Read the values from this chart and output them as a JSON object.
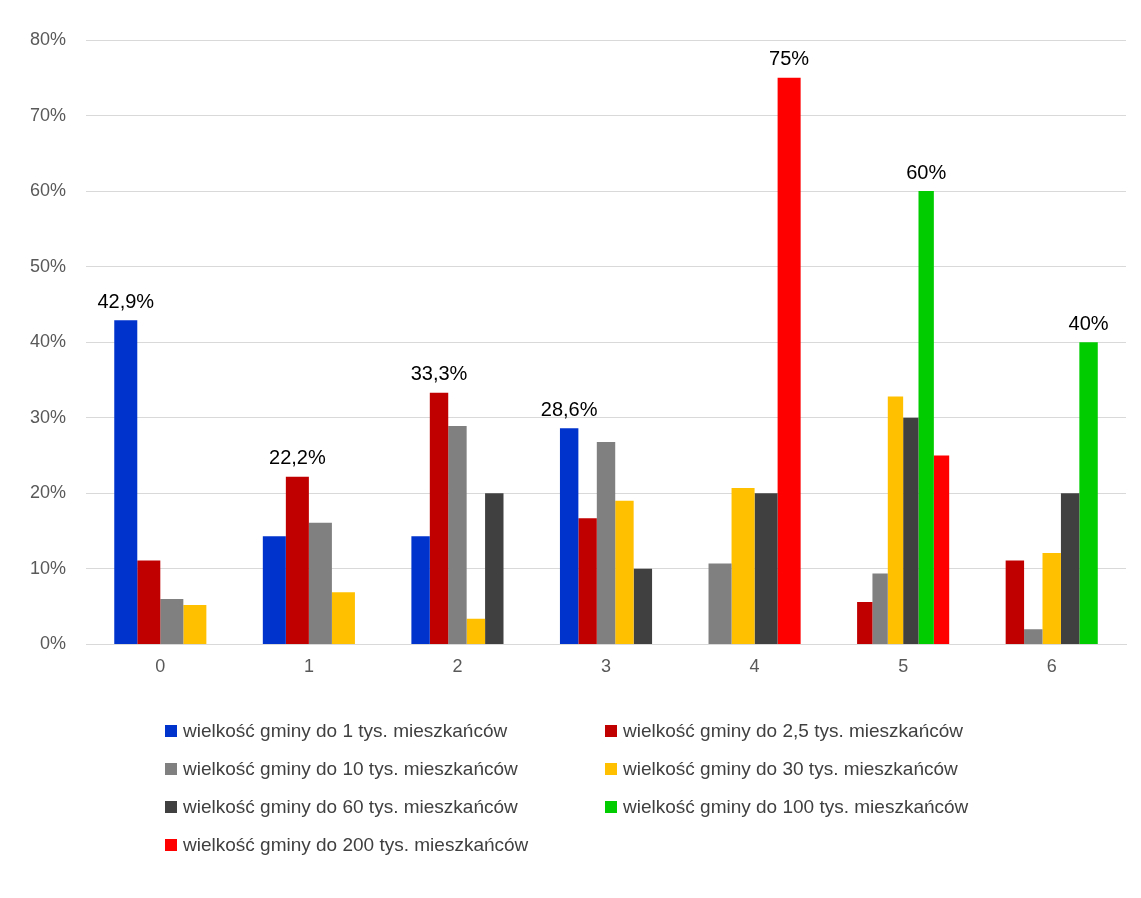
{
  "chart_data": {
    "type": "bar",
    "categories": [
      "0",
      "1",
      "2",
      "3",
      "4",
      "5",
      "6"
    ],
    "series": [
      {
        "name": "wielkość gminy do 1 tys. mieszkańców",
        "color": "#0033cc",
        "values": [
          42.9,
          14.3,
          14.3,
          28.6,
          null,
          null,
          null
        ],
        "value_labels": [
          "42,9%",
          null,
          null,
          "28,6%",
          null,
          null,
          null
        ]
      },
      {
        "name": "wielkość gminy do 2,5 tys. mieszkańców",
        "color": "#c00000",
        "values": [
          11.1,
          22.2,
          33.3,
          16.7,
          null,
          5.6,
          11.1
        ],
        "value_labels": [
          null,
          "22,2%",
          "33,3%",
          null,
          null,
          null,
          null
        ]
      },
      {
        "name": "wielkość gminy do 10 tys. mieszkańców",
        "color": "#808080",
        "values": [
          6.0,
          16.1,
          28.9,
          26.8,
          10.7,
          9.4,
          2.0
        ]
      },
      {
        "name": "wielkość gminy do 30 tys. mieszkańców",
        "color": "#ffc000",
        "values": [
          5.2,
          6.9,
          3.4,
          19.0,
          20.7,
          32.8,
          12.1
        ]
      },
      {
        "name": "wielkość gminy do 60 tys. mieszkańców",
        "color": "#404040",
        "values": [
          null,
          null,
          20,
          10,
          20,
          30,
          20
        ]
      },
      {
        "name": "wielkość gminy do 100 tys. mieszkańców",
        "color": "#00cc00",
        "values": [
          null,
          null,
          null,
          null,
          null,
          60,
          40
        ],
        "value_labels": [
          null,
          null,
          null,
          null,
          null,
          "60%",
          "40%"
        ]
      },
      {
        "name": "wielkość gminy do 200 tys. mieszkańców",
        "color": "#ff0000",
        "values": [
          null,
          null,
          null,
          null,
          75,
          25,
          null
        ],
        "value_labels": [
          null,
          null,
          null,
          null,
          "75%",
          null,
          null
        ]
      }
    ],
    "ylim": [
      0,
      80
    ],
    "yticks": [
      {
        "value": 0,
        "label": "0%"
      },
      {
        "value": 10,
        "label": "10%"
      },
      {
        "value": 20,
        "label": "20%"
      },
      {
        "value": 30,
        "label": "30%"
      },
      {
        "value": 40,
        "label": "40%"
      },
      {
        "value": 50,
        "label": "50%"
      },
      {
        "value": 60,
        "label": "60%"
      },
      {
        "value": 70,
        "label": "70%"
      },
      {
        "value": 80,
        "label": "80%"
      }
    ],
    "grid": "y",
    "legend": "bottom"
  }
}
